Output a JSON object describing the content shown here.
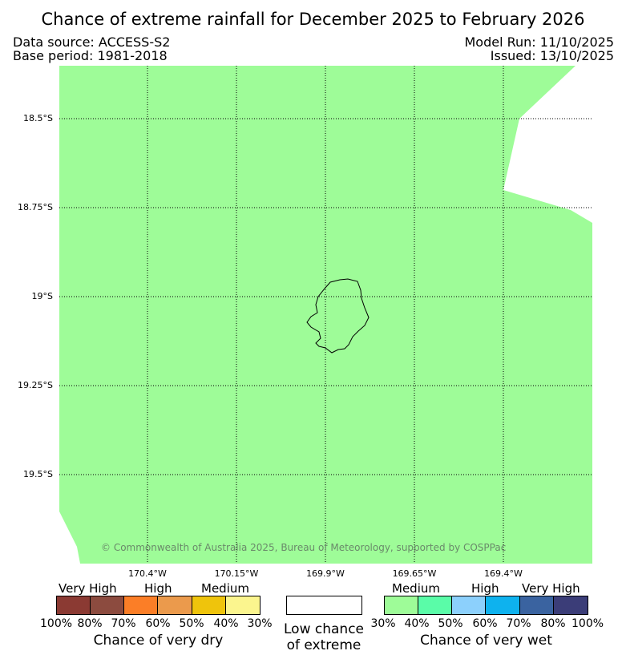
{
  "header": {
    "title": "Chance of extreme rainfall for December 2025 to February 2026",
    "data_source": "Data source: ACCESS-S2",
    "base_period": "Base period: 1981-2018",
    "model_run": "Model Run: 11/10/2025",
    "issued": "Issued: 13/10/2025"
  },
  "map": {
    "lat_labels": [
      "18.5°S",
      "18.75°S",
      "19°S",
      "19.25°S",
      "19.5°S"
    ],
    "lon_labels": [
      "170.4°W",
      "170.15°W",
      "169.9°W",
      "169.65°W",
      "169.4°W"
    ],
    "copyright": "© Commonwealth of Australia 2025, Bureau of Meteorology, supported by COSPPac",
    "fill_color": "#9efc98",
    "fill_category": "Chance of very wet, Medium (30%-40%)"
  },
  "legend": {
    "dry": {
      "categories": [
        "Very High",
        "High",
        "Medium"
      ],
      "percent_labels": [
        "100%",
        "80%",
        "70%",
        "60%",
        "50%",
        "40%",
        "30%"
      ],
      "colors": [
        "#8b3a33",
        "#8c4b3f",
        "#fb7e27",
        "#eb9a4c",
        "#efc40c",
        "#fbf58e"
      ],
      "caption": "Chance of very dry"
    },
    "low": {
      "line1": "Low chance",
      "line2": "of extreme"
    },
    "wet": {
      "categories": [
        "Medium",
        "High",
        "Very High"
      ],
      "percent_labels": [
        "30%",
        "40%",
        "50%",
        "60%",
        "70%",
        "80%",
        "100%"
      ],
      "colors": [
        "#9efc98",
        "#5afca8",
        "#8cd0fc",
        "#0eb2ee",
        "#3a63a0",
        "#3b3d78"
      ],
      "caption": "Chance of very wet"
    }
  }
}
